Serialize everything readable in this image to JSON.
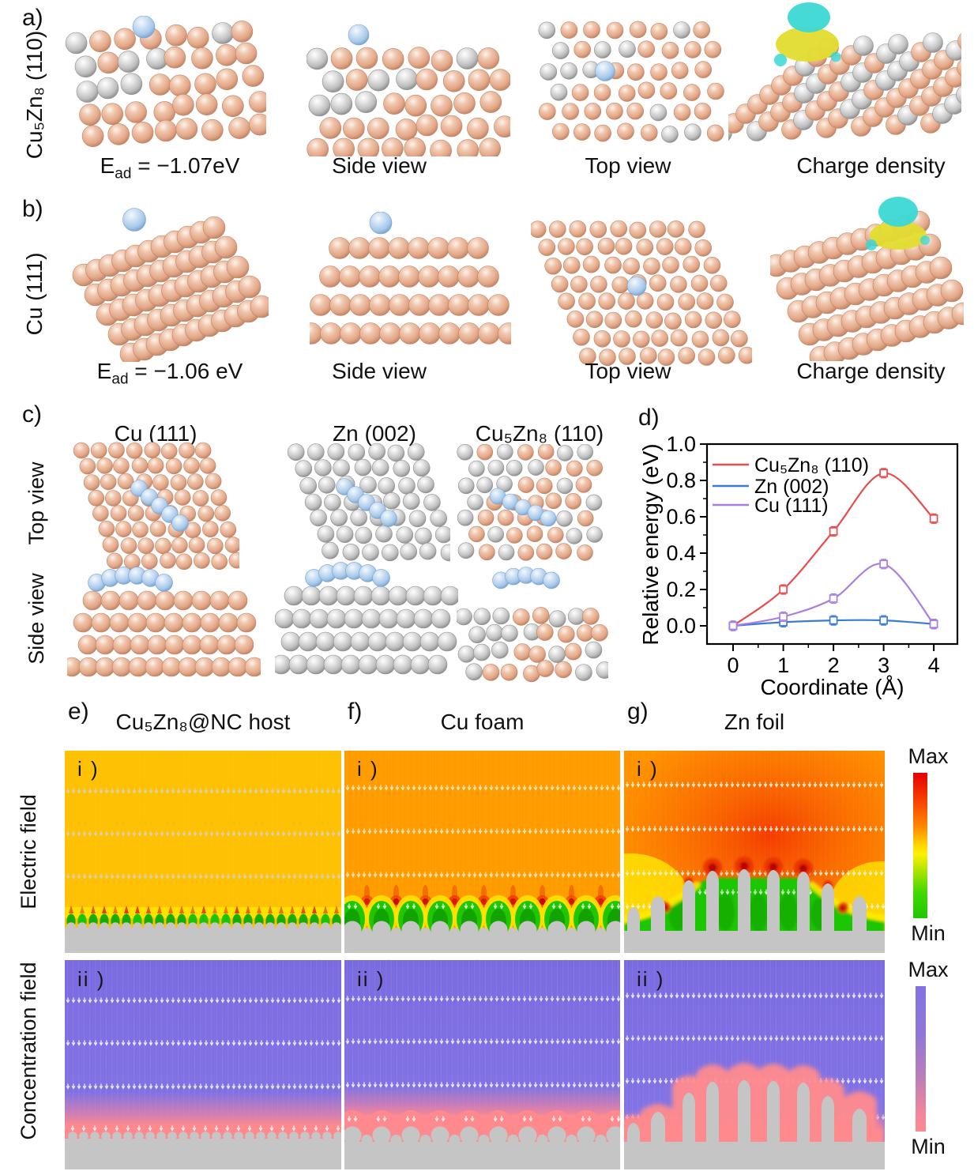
{
  "colors": {
    "copper_atom": "#E7B193",
    "zinc_atom": "#BFBFBF",
    "ion_blue": "#AECBEA",
    "iso_yellow": "#E3DC30",
    "iso_cyan": "#3BD8D4",
    "chart_red": "#E94B4C",
    "chart_blue": "#3B7BD8",
    "chart_purple": "#A87FE0",
    "ef_bg_uniform": "#FFC103",
    "ef_bg_foam": "#FF9D00",
    "ef_bg_foil": "#FF9400",
    "ef_green": "#1DC500",
    "ef_yellow": "#FFE300",
    "ef_hot_red": "#E63000",
    "substrate_gray": "#C5C5C5",
    "conc_purple": "#8071E2",
    "conc_pink": "#FF8A8D"
  },
  "panel_a": {
    "label": "a)",
    "material": "Cu₅Zn₈  (110)",
    "caption_ead": {
      "base": "E",
      "sub": "ad",
      "rest": " = −1.07eV"
    },
    "caption_side": "Side view",
    "caption_top": "Top view",
    "caption_charge": "Charge density"
  },
  "panel_b": {
    "label": "b)",
    "material": "Cu (111)",
    "caption_ead": {
      "base": "E",
      "sub": "ad",
      "rest": " = −1.06 eV"
    },
    "caption_side": "Side view",
    "caption_top": "Top view",
    "caption_charge": "Charge density"
  },
  "panel_c": {
    "label": "c)",
    "col_titles": [
      "Cu (111)",
      "Zn (002)",
      "Cu₅Zn₈ (110)"
    ],
    "row_top": "Top view",
    "row_side": "Side view"
  },
  "panel_d": {
    "label": "d)",
    "chart_data": {
      "type": "line",
      "x": [
        0,
        1,
        2,
        3,
        4
      ],
      "series": [
        {
          "name": "Cu₅Zn₈ (110)",
          "color": "#E94B4C",
          "values": [
            0.0,
            0.2,
            0.52,
            0.84,
            0.59
          ]
        },
        {
          "name": "Zn (002)",
          "color": "#3B7BD8",
          "values": [
            0.0,
            0.02,
            0.03,
            0.03,
            0.01
          ]
        },
        {
          "name": "Cu (111)",
          "color": "#A87FE0",
          "values": [
            0.0,
            0.05,
            0.15,
            0.34,
            0.01
          ]
        }
      ],
      "xlabel": "Coordinate (Å)",
      "ylabel": "Relative energy (eV)",
      "xticks": [
        0,
        1,
        2,
        3,
        4
      ],
      "yticks": [
        "0.0",
        "0.2",
        "0.4",
        "0.6",
        "0.8",
        "1.0"
      ],
      "xlim": [
        -0.52,
        4.47
      ],
      "ylim": [
        -0.1,
        1.0
      ],
      "legend_position": "top-left",
      "grid": false,
      "marker": "open-square",
      "smooth": true
    }
  },
  "simulation": {
    "panel_e": {
      "label": "e)",
      "title": "Cu₅Zn₈@NC host"
    },
    "panel_f": {
      "label": "f)",
      "title": "Cu foam"
    },
    "panel_g": {
      "label": "g)",
      "title": "Zn foil"
    },
    "rows": [
      {
        "label": "Electric field",
        "index_label": "i )",
        "colorbar_max": "Max",
        "colorbar_min": "Min"
      },
      {
        "label": "Concentration field",
        "index_label": "ii )",
        "colorbar_max": "Max",
        "colorbar_min": "Min"
      }
    ]
  }
}
